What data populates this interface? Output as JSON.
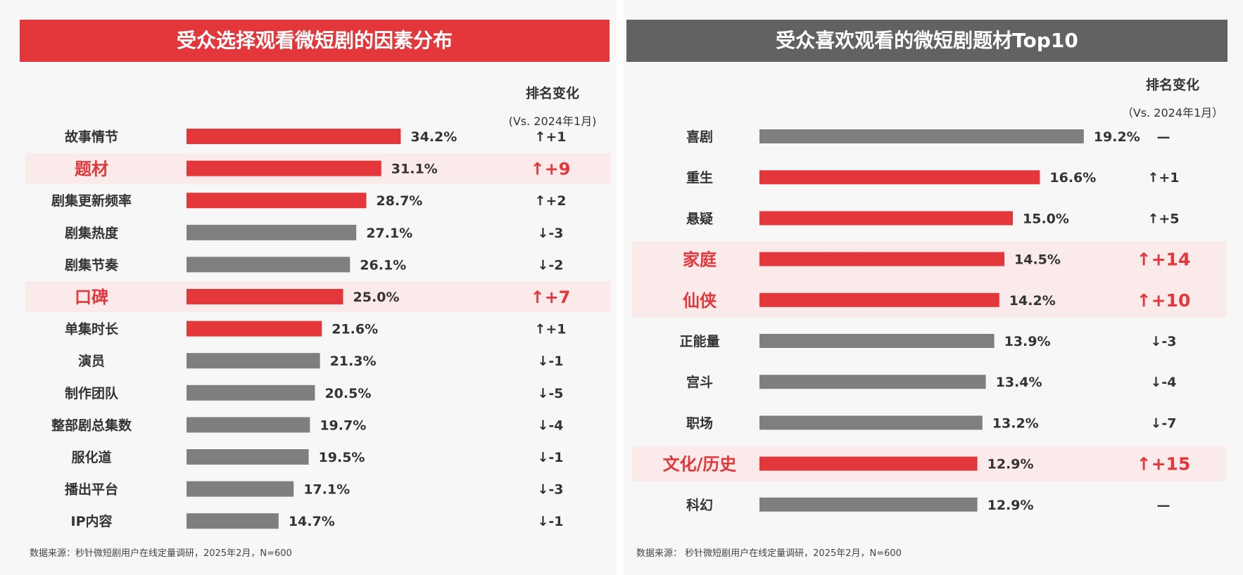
{
  "colors": {
    "red": "#e4373c",
    "gray": "#7f7f7f",
    "highlight_bg": "#fbeaea",
    "dark_title_bg": "#626262"
  },
  "left": {
    "title": "受众选择观看微短剧的因素分布",
    "rank_header": "排名变化",
    "rank_subheader": "(Vs. 2024年1月)",
    "footnote": "数据来源：秒针微短剧用户在线定量调研，2025年2月，N=600"
  },
  "right": {
    "title": "受众喜欢观看的微短剧题材Top10",
    "rank_header": "排名变化",
    "rank_subheader": "（Vs. 2024年1月）",
    "footnote": "数据来源：  秒针微短剧用户在线定量调研，2025年2月，N=600"
  },
  "chart_data": [
    {
      "type": "bar",
      "orientation": "horizontal",
      "title": "受众选择观看微短剧的因素分布",
      "unit": "%",
      "categories": [
        "故事情节",
        "题材",
        "剧集更新频率",
        "剧集热度",
        "剧集节奏",
        "口碑",
        "单集时长",
        "演员",
        "制作团队",
        "整部剧总集数",
        "服化道",
        "播出平台",
        "IP内容"
      ],
      "values": [
        34.2,
        31.1,
        28.7,
        27.1,
        26.1,
        25.0,
        21.6,
        21.3,
        20.5,
        19.7,
        19.5,
        17.1,
        14.7
      ],
      "value_labels": [
        "34.2%",
        "31.1%",
        "28.7%",
        "27.1%",
        "26.1%",
        "25.0%",
        "21.6%",
        "21.3%",
        "20.5%",
        "19.7%",
        "19.5%",
        "17.1%",
        "14.7%"
      ],
      "rank_change": [
        "↑+1",
        "↑+9",
        "↑+2",
        "↓-3",
        "↓-2",
        "↑+7",
        "↑+1",
        "↓-1",
        "↓-5",
        "↓-4",
        "↓-1",
        "↓-3",
        "↓-1"
      ],
      "bar_color": [
        "red",
        "red",
        "red",
        "gray",
        "gray",
        "red",
        "red",
        "gray",
        "gray",
        "gray",
        "gray",
        "gray",
        "gray"
      ],
      "highlighted": [
        false,
        true,
        false,
        false,
        false,
        true,
        false,
        false,
        false,
        false,
        false,
        false,
        false
      ]
    },
    {
      "type": "bar",
      "orientation": "horizontal",
      "title": "受众喜欢观看的微短剧题材Top10",
      "unit": "%",
      "categories": [
        "喜剧",
        "重生",
        "悬疑",
        "家庭",
        "仙侠",
        "正能量",
        "宫斗",
        "职场",
        "文化/历史",
        "科幻"
      ],
      "values": [
        19.2,
        16.6,
        15.0,
        14.5,
        14.2,
        13.9,
        13.4,
        13.2,
        12.9,
        12.9
      ],
      "value_labels": [
        "19.2%",
        "16.6%",
        "15.0%",
        "14.5%",
        "14.2%",
        "13.9%",
        "13.4%",
        "13.2%",
        "12.9%",
        "12.9%"
      ],
      "rank_change": [
        "—",
        "↑+1",
        "↑+5",
        "↑+14",
        "↑+10",
        "↓-3",
        "↓-4",
        "↓-7",
        "↑+15",
        "—"
      ],
      "bar_color": [
        "gray",
        "red",
        "red",
        "red",
        "red",
        "gray",
        "gray",
        "gray",
        "red",
        "gray"
      ],
      "highlighted": [
        false,
        false,
        false,
        true,
        true,
        false,
        false,
        false,
        true,
        false
      ]
    }
  ]
}
